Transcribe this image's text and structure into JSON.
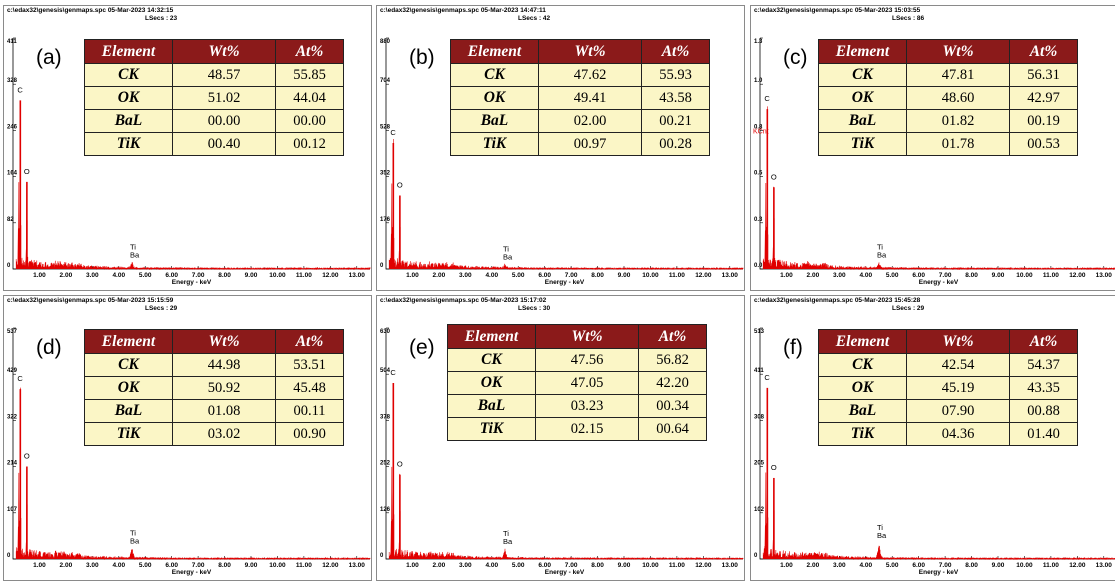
{
  "chart_data": [
    {
      "type": "line",
      "panel_label": "(a)",
      "file": "c:\\edax32\\genesis\\genmaps.spc",
      "date": "05-Mar-2023 14:32:15",
      "lsecs": "LSecs : 23",
      "xlabel": "Energy - keV",
      "x_ticks": [
        "1.00",
        "2.00",
        "3.00",
        "4.00",
        "5.00",
        "6.00",
        "7.00",
        "8.00",
        "9.00",
        "10.00",
        "11.00",
        "12.00",
        "13.00"
      ],
      "y_ticks": [
        "0",
        "82",
        "164",
        "246",
        "328",
        "411"
      ],
      "ylim": [
        0,
        411
      ],
      "xlim": [
        0,
        13.5
      ],
      "peaks": [
        {
          "label": "C",
          "x": 0.277,
          "y": 300
        },
        {
          "label": "O",
          "x": 0.525,
          "y": 155
        },
        {
          "label": "Ti\nBa",
          "x": 4.5,
          "y": 10
        }
      ],
      "table": {
        "headers": [
          "Element",
          "Wt%",
          "At%"
        ],
        "rows": [
          [
            "CK",
            "48.57",
            "55.85"
          ],
          [
            "OK",
            "51.02",
            "44.04"
          ],
          [
            "BaL",
            "00.00",
            "00.00"
          ],
          [
            "TiK",
            "00.40",
            "00.12"
          ]
        ]
      }
    },
    {
      "type": "line",
      "panel_label": "(b)",
      "file": "c:\\edax32\\genesis\\genmaps.spc",
      "date": "05-Mar-2023 14:47:11",
      "lsecs": "LSecs : 42",
      "xlabel": "Energy - keV",
      "x_ticks": [
        "1.00",
        "2.00",
        "3.00",
        "4.00",
        "5.00",
        "6.00",
        "7.00",
        "8.00",
        "9.00",
        "10.00",
        "11.00",
        "12.00",
        "13.00"
      ],
      "y_ticks": [
        "0",
        "176",
        "352",
        "528",
        "704",
        "880"
      ],
      "ylim": [
        0,
        880
      ],
      "xlim": [
        0,
        13.5
      ],
      "peaks": [
        {
          "label": "C",
          "x": 0.277,
          "y": 480
        },
        {
          "label": "O",
          "x": 0.525,
          "y": 280
        },
        {
          "label": "Ti\nBa",
          "x": 4.5,
          "y": 14
        }
      ],
      "table": {
        "headers": [
          "Element",
          "Wt%",
          "At%"
        ],
        "rows": [
          [
            "CK",
            "47.62",
            "55.93"
          ],
          [
            "OK",
            "49.41",
            "43.58"
          ],
          [
            "BaL",
            "02.00",
            "00.21"
          ],
          [
            "TiK",
            "00.97",
            "00.28"
          ]
        ]
      }
    },
    {
      "type": "line",
      "panel_label": "(c)",
      "file": "c:\\edax32\\genesis\\genmaps.spc",
      "date": "05-Mar-2023 15:03:55",
      "lsecs": "LSecs : 86",
      "xlabel": "Energy - keV",
      "ylabel": "KCnt",
      "x_ticks": [
        "1.00",
        "2.00",
        "3.00",
        "4.00",
        "5.00",
        "6.00",
        "7.00",
        "8.00",
        "9.00",
        "10.00",
        "11.00",
        "12.00",
        "13.00"
      ],
      "y_ticks": [
        "0.0",
        "0.3",
        "0.5",
        "0.8",
        "1.0",
        "1.3"
      ],
      "ylim": [
        0,
        1.3
      ],
      "xlim": [
        0,
        13.5
      ],
      "peaks": [
        {
          "label": "C",
          "x": 0.277,
          "y": 0.9
        },
        {
          "label": "O",
          "x": 0.525,
          "y": 0.46
        },
        {
          "label": "Ti\nBa",
          "x": 4.5,
          "y": 0.03
        }
      ],
      "table": {
        "headers": [
          "Element",
          "Wt%",
          "At%"
        ],
        "rows": [
          [
            "CK",
            "47.81",
            "56.31"
          ],
          [
            "OK",
            "48.60",
            "42.97"
          ],
          [
            "BaL",
            "01.82",
            "00.19"
          ],
          [
            "TiK",
            "01.78",
            "00.53"
          ]
        ]
      }
    },
    {
      "type": "line",
      "panel_label": "(d)",
      "file": "c:\\edax32\\genesis\\genmaps.spc",
      "date": "05-Mar-2023 15:15:59",
      "lsecs": "LSecs : 29",
      "xlabel": "Energy - keV",
      "x_ticks": [
        "1.00",
        "2.00",
        "3.00",
        "4.00",
        "5.00",
        "6.00",
        "7.00",
        "8.00",
        "9.00",
        "10.00",
        "11.00",
        "12.00",
        "13.00"
      ],
      "y_ticks": [
        "0",
        "107",
        "214",
        "322",
        "429",
        "537"
      ],
      "ylim": [
        0,
        537
      ],
      "xlim": [
        0,
        13.5
      ],
      "peaks": [
        {
          "label": "C",
          "x": 0.277,
          "y": 395
        },
        {
          "label": "O",
          "x": 0.525,
          "y": 215
        },
        {
          "label": "Ti\nBa",
          "x": 4.5,
          "y": 22
        }
      ],
      "table": {
        "headers": [
          "Element",
          "Wt%",
          "At%"
        ],
        "rows": [
          [
            "CK",
            "44.98",
            "53.51"
          ],
          [
            "OK",
            "50.92",
            "45.48"
          ],
          [
            "BaL",
            "01.08",
            "00.11"
          ],
          [
            "TiK",
            "03.02",
            "00.90"
          ]
        ]
      }
    },
    {
      "type": "line",
      "panel_label": "(e)",
      "file": "c:\\edax32\\genesis\\genmaps.spc",
      "date": "05-Mar-2023 15:17:02",
      "lsecs": "LSecs : 30",
      "xlabel": "Energy - keV",
      "x_ticks": [
        "1.00",
        "2.00",
        "3.00",
        "4.00",
        "5.00",
        "6.00",
        "7.00",
        "8.00",
        "9.00",
        "10.00",
        "11.00",
        "12.00",
        "13.00"
      ],
      "y_ticks": [
        "0",
        "126",
        "252",
        "378",
        "504",
        "630"
      ],
      "ylim": [
        0,
        630
      ],
      "xlim": [
        0,
        13.5
      ],
      "peaks": [
        {
          "label": "C",
          "x": 0.277,
          "y": 480
        },
        {
          "label": "O",
          "x": 0.525,
          "y": 230
        },
        {
          "label": "Ti\nBa",
          "x": 4.5,
          "y": 25
        }
      ],
      "table": {
        "headers": [
          "Element",
          "Wt%",
          "At%"
        ],
        "rows": [
          [
            "CK",
            "47.56",
            "56.82"
          ],
          [
            "OK",
            "47.05",
            "42.20"
          ],
          [
            "BaL",
            "03.23",
            "00.34"
          ],
          [
            "TiK",
            "02.15",
            "00.64"
          ]
        ]
      }
    },
    {
      "type": "line",
      "panel_label": "(f)",
      "file": "c:\\edax32\\genesis\\genmaps.spc",
      "date": "05-Mar-2023 15:45:28",
      "lsecs": "LSecs : 29",
      "xlabel": "Energy - keV",
      "x_ticks": [
        "1.00",
        "2.00",
        "3.00",
        "4.00",
        "5.00",
        "6.00",
        "7.00",
        "8.00",
        "9.00",
        "10.00",
        "11.00",
        "12.00",
        "13.00"
      ],
      "y_ticks": [
        "0",
        "102",
        "205",
        "308",
        "411",
        "513"
      ],
      "ylim": [
        0,
        513
      ],
      "xlim": [
        0,
        13.5
      ],
      "peaks": [
        {
          "label": "C",
          "x": 0.277,
          "y": 380
        },
        {
          "label": "O",
          "x": 0.525,
          "y": 180
        },
        {
          "label": "Ti\nBa",
          "x": 4.5,
          "y": 33
        }
      ],
      "table": {
        "headers": [
          "Element",
          "Wt%",
          "At%"
        ],
        "rows": [
          [
            "CK",
            "42.54",
            "54.37"
          ],
          [
            "OK",
            "45.19",
            "43.35"
          ],
          [
            "BaL",
            "07.90",
            "00.88"
          ],
          [
            "TiK",
            "04.36",
            "01.40"
          ]
        ]
      }
    }
  ],
  "colors": {
    "spectrum": "#e00000",
    "table_header": "#8b1a1a",
    "table_cell": "#fbf6c6"
  }
}
